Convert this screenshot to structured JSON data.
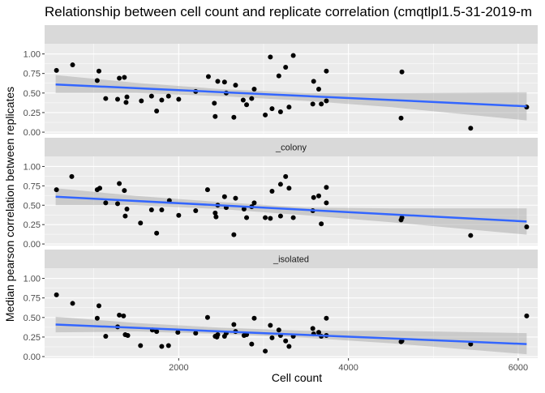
{
  "chart_data": {
    "type": "scatter",
    "title": "Relationship between cell count and replicate correlation (cmqtlpl1.5-31-2019-m",
    "xlabel": "Cell count",
    "ylabel": "Median pearson correlation between replicates",
    "xlim": [
      420,
      6230
    ],
    "ylim": [
      -0.02,
      1.13
    ],
    "x_ticks": [
      2000,
      4000,
      6000
    ],
    "x_tick_labels": [
      "2000",
      "4000",
      "6000"
    ],
    "y_ticks": [
      0,
      0.25,
      0.5,
      0.75,
      1
    ],
    "y_tick_labels": [
      "0.00",
      "0.25",
      "0.50",
      "0.75",
      "1.00"
    ],
    "grid": true,
    "colors": {
      "panel_bg": "#ebebeb",
      "strip_bg": "#d9d9d9",
      "grid_major": "#ffffff",
      "points": "#000000",
      "trend_line": "#3366ff",
      "confidence_band": "#999999"
    },
    "panels": [
      {
        "strip_label": "",
        "points": [
          {
            "x": 560,
            "y": 0.79
          },
          {
            "x": 750,
            "y": 0.86
          },
          {
            "x": 1040,
            "y": 0.66
          },
          {
            "x": 1060,
            "y": 0.78
          },
          {
            "x": 1140,
            "y": 0.43
          },
          {
            "x": 1280,
            "y": 0.42
          },
          {
            "x": 1300,
            "y": 0.69
          },
          {
            "x": 1360,
            "y": 0.7
          },
          {
            "x": 1380,
            "y": 0.38
          },
          {
            "x": 1390,
            "y": 0.45
          },
          {
            "x": 1560,
            "y": 0.4
          },
          {
            "x": 1680,
            "y": 0.46
          },
          {
            "x": 1740,
            "y": 0.27
          },
          {
            "x": 1800,
            "y": 0.41
          },
          {
            "x": 1880,
            "y": 0.46
          },
          {
            "x": 2000,
            "y": 0.42
          },
          {
            "x": 2200,
            "y": 0.52
          },
          {
            "x": 2350,
            "y": 0.71
          },
          {
            "x": 2420,
            "y": 0.37
          },
          {
            "x": 2430,
            "y": 0.2
          },
          {
            "x": 2460,
            "y": 0.65
          },
          {
            "x": 2540,
            "y": 0.64
          },
          {
            "x": 2560,
            "y": 0.5
          },
          {
            "x": 2650,
            "y": 0.19
          },
          {
            "x": 2670,
            "y": 0.6
          },
          {
            "x": 2760,
            "y": 0.41
          },
          {
            "x": 2800,
            "y": 0.35
          },
          {
            "x": 2860,
            "y": 0.43
          },
          {
            "x": 2890,
            "y": 0.55
          },
          {
            "x": 3020,
            "y": 0.22
          },
          {
            "x": 3080,
            "y": 0.96
          },
          {
            "x": 3100,
            "y": 0.3
          },
          {
            "x": 3180,
            "y": 0.72
          },
          {
            "x": 3200,
            "y": 0.26
          },
          {
            "x": 3260,
            "y": 0.83
          },
          {
            "x": 3300,
            "y": 0.32
          },
          {
            "x": 3350,
            "y": 0.98
          },
          {
            "x": 3580,
            "y": 0.36
          },
          {
            "x": 3590,
            "y": 0.65
          },
          {
            "x": 3650,
            "y": 0.55
          },
          {
            "x": 3680,
            "y": 0.36
          },
          {
            "x": 3740,
            "y": 0.4
          },
          {
            "x": 3740,
            "y": 0.78
          },
          {
            "x": 4620,
            "y": 0.18
          },
          {
            "x": 4630,
            "y": 0.77
          },
          {
            "x": 5440,
            "y": 0.05
          },
          {
            "x": 6100,
            "y": 0.32
          }
        ],
        "fit": {
          "y_at_x_start": 0.61,
          "y_at_x_end": 0.33
        },
        "band": [
          {
            "x": 550,
            "lo": 0.5,
            "hi": 0.73
          },
          {
            "x": 1500,
            "lo": 0.5,
            "hi": 0.63
          },
          {
            "x": 2500,
            "lo": 0.46,
            "hi": 0.55
          },
          {
            "x": 3500,
            "lo": 0.4,
            "hi": 0.5
          },
          {
            "x": 4500,
            "lo": 0.32,
            "hi": 0.5
          },
          {
            "x": 6100,
            "lo": 0.15,
            "hi": 0.51
          }
        ]
      },
      {
        "strip_label": "_colony",
        "points": [
          {
            "x": 560,
            "y": 0.7
          },
          {
            "x": 740,
            "y": 0.87
          },
          {
            "x": 1040,
            "y": 0.7
          },
          {
            "x": 1070,
            "y": 0.72
          },
          {
            "x": 1140,
            "y": 0.53
          },
          {
            "x": 1280,
            "y": 0.52
          },
          {
            "x": 1300,
            "y": 0.78
          },
          {
            "x": 1360,
            "y": 0.69
          },
          {
            "x": 1370,
            "y": 0.36
          },
          {
            "x": 1390,
            "y": 0.45
          },
          {
            "x": 1550,
            "y": 0.27
          },
          {
            "x": 1680,
            "y": 0.44
          },
          {
            "x": 1740,
            "y": 0.14
          },
          {
            "x": 1800,
            "y": 0.44
          },
          {
            "x": 1890,
            "y": 0.56
          },
          {
            "x": 2000,
            "y": 0.37
          },
          {
            "x": 2200,
            "y": 0.43
          },
          {
            "x": 2340,
            "y": 0.7
          },
          {
            "x": 2430,
            "y": 0.4
          },
          {
            "x": 2440,
            "y": 0.35
          },
          {
            "x": 2460,
            "y": 0.5
          },
          {
            "x": 2540,
            "y": 0.61
          },
          {
            "x": 2560,
            "y": 0.47
          },
          {
            "x": 2650,
            "y": 0.12
          },
          {
            "x": 2670,
            "y": 0.59
          },
          {
            "x": 2770,
            "y": 0.45
          },
          {
            "x": 2800,
            "y": 0.34
          },
          {
            "x": 2860,
            "y": 0.48
          },
          {
            "x": 2890,
            "y": 0.53
          },
          {
            "x": 3020,
            "y": 0.34
          },
          {
            "x": 3080,
            "y": 0.33
          },
          {
            "x": 3100,
            "y": 0.68
          },
          {
            "x": 3200,
            "y": 0.36
          },
          {
            "x": 3200,
            "y": 0.77
          },
          {
            "x": 3260,
            "y": 0.87
          },
          {
            "x": 3300,
            "y": 0.72
          },
          {
            "x": 3350,
            "y": 0.34
          },
          {
            "x": 3580,
            "y": 0.43
          },
          {
            "x": 3590,
            "y": 0.6
          },
          {
            "x": 3650,
            "y": 0.62
          },
          {
            "x": 3680,
            "y": 0.26
          },
          {
            "x": 3740,
            "y": 0.53
          },
          {
            "x": 3740,
            "y": 0.73
          },
          {
            "x": 4620,
            "y": 0.31
          },
          {
            "x": 4630,
            "y": 0.34
          },
          {
            "x": 5440,
            "y": 0.11
          },
          {
            "x": 6100,
            "y": 0.22
          }
        ],
        "fit": {
          "y_at_x_start": 0.61,
          "y_at_x_end": 0.29
        },
        "band": [
          {
            "x": 550,
            "lo": 0.5,
            "hi": 0.72
          },
          {
            "x": 1500,
            "lo": 0.5,
            "hi": 0.62
          },
          {
            "x": 2500,
            "lo": 0.45,
            "hi": 0.54
          },
          {
            "x": 3500,
            "lo": 0.37,
            "hi": 0.47
          },
          {
            "x": 4500,
            "lo": 0.28,
            "hi": 0.46
          },
          {
            "x": 6100,
            "lo": 0.12,
            "hi": 0.46
          }
        ]
      },
      {
        "strip_label": "_isolated",
        "points": [
          {
            "x": 560,
            "y": 0.79
          },
          {
            "x": 750,
            "y": 0.68
          },
          {
            "x": 1040,
            "y": 0.49
          },
          {
            "x": 1060,
            "y": 0.65
          },
          {
            "x": 1140,
            "y": 0.26
          },
          {
            "x": 1280,
            "y": 0.38
          },
          {
            "x": 1300,
            "y": 0.53
          },
          {
            "x": 1350,
            "y": 0.52
          },
          {
            "x": 1370,
            "y": 0.28
          },
          {
            "x": 1400,
            "y": 0.27
          },
          {
            "x": 1550,
            "y": 0.14
          },
          {
            "x": 1690,
            "y": 0.34
          },
          {
            "x": 1740,
            "y": 0.32
          },
          {
            "x": 1800,
            "y": 0.13
          },
          {
            "x": 1880,
            "y": 0.14
          },
          {
            "x": 1990,
            "y": 0.31
          },
          {
            "x": 2200,
            "y": 0.3
          },
          {
            "x": 2340,
            "y": 0.5
          },
          {
            "x": 2430,
            "y": 0.26
          },
          {
            "x": 2450,
            "y": 0.25
          },
          {
            "x": 2460,
            "y": 0.28
          },
          {
            "x": 2540,
            "y": 0.26
          },
          {
            "x": 2560,
            "y": 0.3
          },
          {
            "x": 2650,
            "y": 0.41
          },
          {
            "x": 2670,
            "y": 0.32
          },
          {
            "x": 2770,
            "y": 0.27
          },
          {
            "x": 2800,
            "y": 0.28
          },
          {
            "x": 2860,
            "y": 0.16
          },
          {
            "x": 2890,
            "y": 0.49
          },
          {
            "x": 3020,
            "y": 0.07
          },
          {
            "x": 3080,
            "y": 0.4
          },
          {
            "x": 3100,
            "y": 0.24
          },
          {
            "x": 3180,
            "y": 0.34
          },
          {
            "x": 3200,
            "y": 0.27
          },
          {
            "x": 3260,
            "y": 0.2
          },
          {
            "x": 3300,
            "y": 0.13
          },
          {
            "x": 3350,
            "y": 0.26
          },
          {
            "x": 3580,
            "y": 0.36
          },
          {
            "x": 3590,
            "y": 0.29
          },
          {
            "x": 3650,
            "y": 0.31
          },
          {
            "x": 3680,
            "y": 0.26
          },
          {
            "x": 3740,
            "y": 0.49
          },
          {
            "x": 3740,
            "y": 0.27
          },
          {
            "x": 4620,
            "y": 0.19
          },
          {
            "x": 4630,
            "y": 0.2
          },
          {
            "x": 5440,
            "y": 0.16
          },
          {
            "x": 6100,
            "y": 0.52
          }
        ],
        "fit": {
          "y_at_x_start": 0.41,
          "y_at_x_end": 0.16
        },
        "band": [
          {
            "x": 550,
            "lo": 0.31,
            "hi": 0.51
          },
          {
            "x": 1500,
            "lo": 0.32,
            "hi": 0.43
          },
          {
            "x": 2500,
            "lo": 0.29,
            "hi": 0.37
          },
          {
            "x": 3500,
            "lo": 0.24,
            "hi": 0.33
          },
          {
            "x": 4500,
            "lo": 0.17,
            "hi": 0.33
          },
          {
            "x": 6100,
            "lo": 0.03,
            "hi": 0.3
          }
        ]
      }
    ]
  }
}
